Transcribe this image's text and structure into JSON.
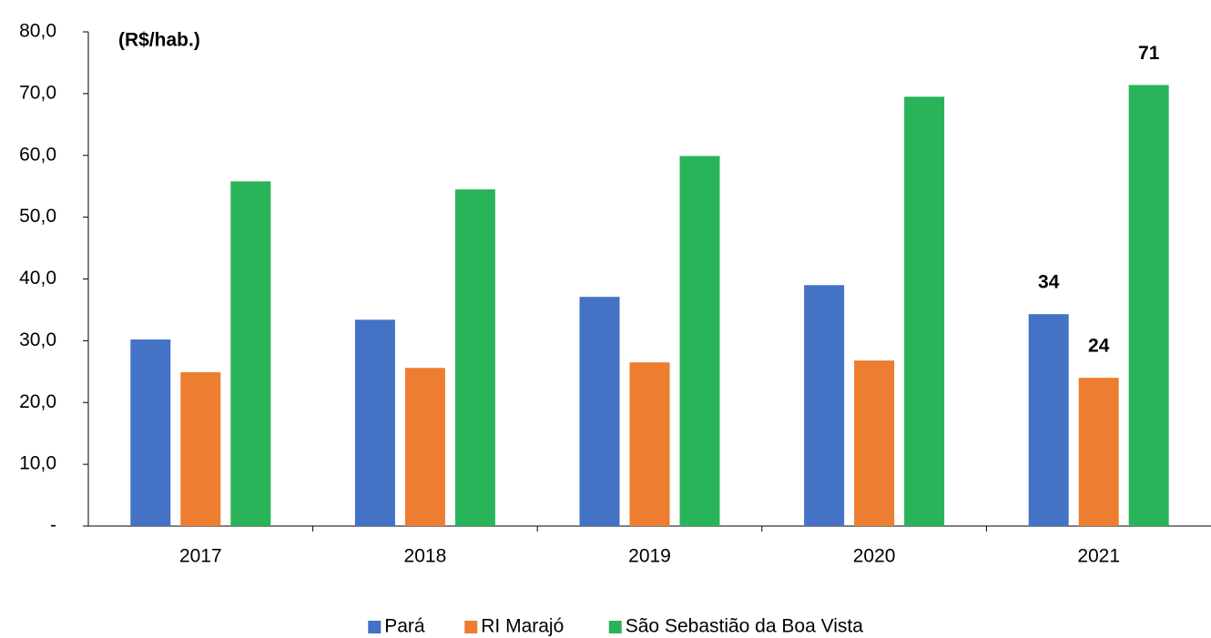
{
  "chart_data": {
    "type": "bar",
    "ylabel": "(R$/hab.)",
    "categories": [
      "2017",
      "2018",
      "2019",
      "2020",
      "2021"
    ],
    "series": [
      {
        "name": "Pará",
        "color": "#4472c4",
        "values": [
          30.2,
          33.4,
          37.1,
          39.0,
          34.3
        ],
        "value_labels": [
          null,
          null,
          null,
          null,
          "34"
        ]
      },
      {
        "name": "RI Marajó",
        "color": "#ed7d31",
        "values": [
          24.9,
          25.6,
          26.5,
          26.8,
          24.0
        ],
        "value_labels": [
          null,
          null,
          null,
          null,
          "24"
        ]
      },
      {
        "name": "São Sebastião da Boa Vista",
        "color": "#2ab45a",
        "values": [
          55.8,
          54.5,
          59.9,
          69.5,
          71.4
        ],
        "value_labels": [
          null,
          null,
          null,
          null,
          "71"
        ]
      }
    ],
    "ylim": [
      0,
      80
    ],
    "yticks": [
      {
        "value": 0,
        "label": "-"
      },
      {
        "value": 10,
        "label": "10,0"
      },
      {
        "value": 20,
        "label": "20,0"
      },
      {
        "value": 30,
        "label": "30,0"
      },
      {
        "value": 40,
        "label": "40,0"
      },
      {
        "value": 50,
        "label": "50,0"
      },
      {
        "value": 60,
        "label": "60,0"
      },
      {
        "value": 70,
        "label": "70,0"
      },
      {
        "value": 80,
        "label": "80,0"
      }
    ],
    "legend": "bottom"
  }
}
